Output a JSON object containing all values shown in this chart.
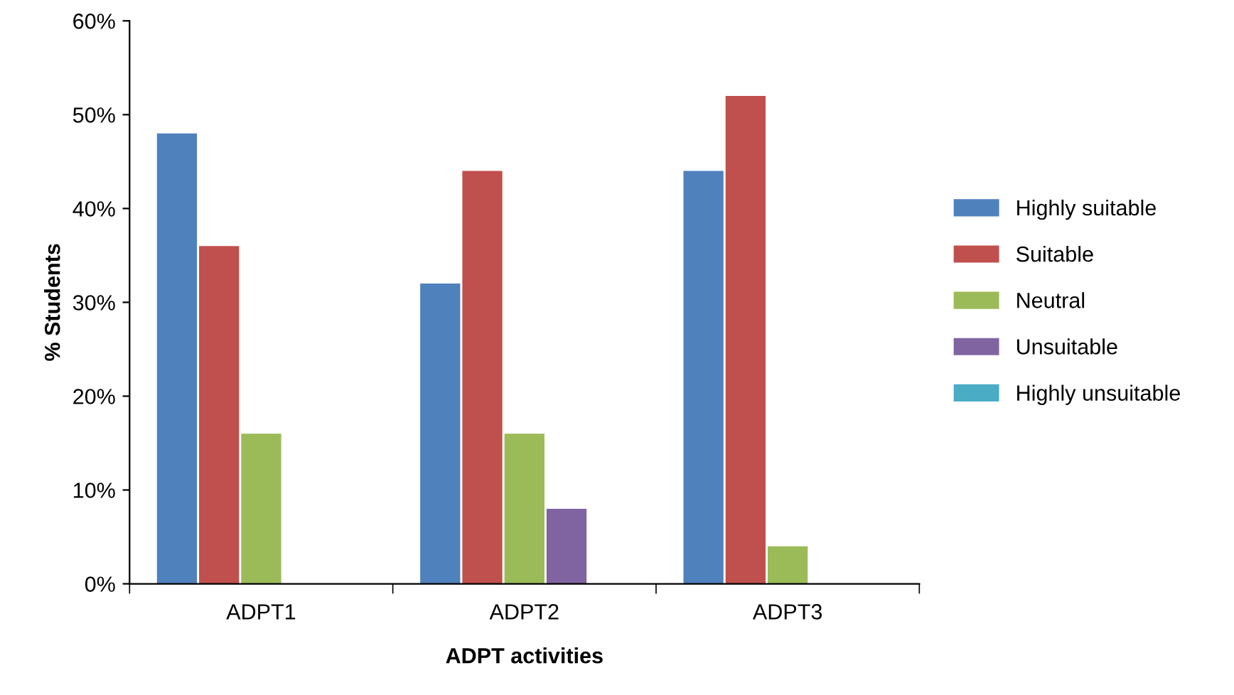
{
  "chart_data": {
    "type": "bar",
    "xlabel": "ADPT activities",
    "ylabel": "% Students",
    "categories": [
      "ADPT1",
      "ADPT2",
      "ADPT3"
    ],
    "series": [
      {
        "name": "Highly suitable",
        "color": "#4f81bd",
        "values": [
          48,
          32,
          44
        ]
      },
      {
        "name": "Suitable",
        "color": "#c0504d",
        "values": [
          36,
          44,
          52
        ]
      },
      {
        "name": "Neutral",
        "color": "#9bbb59",
        "values": [
          16,
          16,
          4
        ]
      },
      {
        "name": "Unsuitable",
        "color": "#8064a2",
        "values": [
          0,
          8,
          0
        ]
      },
      {
        "name": "Highly unsuitable",
        "color": "#4bacc6",
        "values": [
          0,
          0,
          0
        ]
      }
    ],
    "ylim": [
      0,
      60
    ],
    "yticks": [
      {
        "value": 0,
        "label": "0%"
      },
      {
        "value": 10,
        "label": "10%"
      },
      {
        "value": 20,
        "label": "20%"
      },
      {
        "value": 30,
        "label": "30%"
      },
      {
        "value": 40,
        "label": "40%"
      },
      {
        "value": 50,
        "label": "50%"
      },
      {
        "value": 60,
        "label": "60%"
      }
    ],
    "grid": false,
    "legend": "right"
  }
}
